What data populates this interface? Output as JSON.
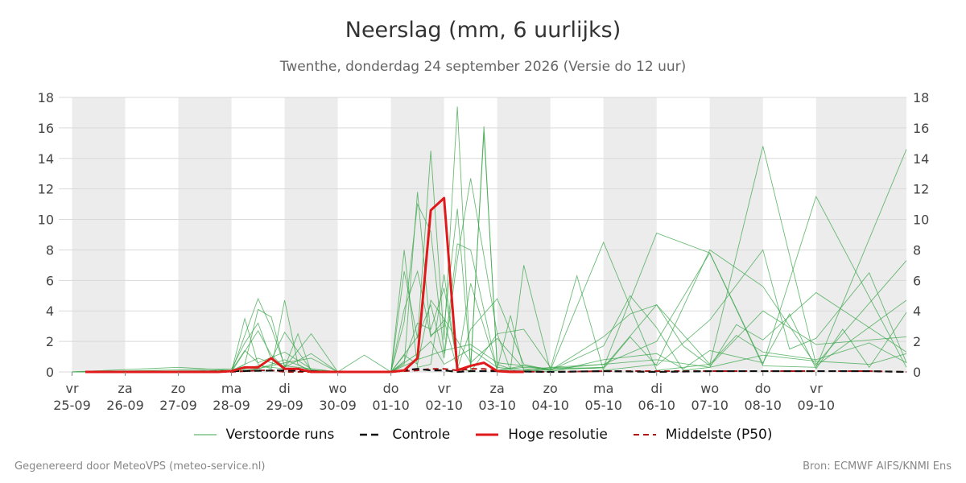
{
  "header": {
    "title": "Neerslag (mm, 6 uurlijks)",
    "subtitle": "Twenthe, donderdag 24 september 2026 (Versie do 12 uur)"
  },
  "footer": {
    "left": "Gegenereerd door MeteoVPS (meteo-service.nl)",
    "right": "Bron: ECMWF AIFS/KNMI Ens"
  },
  "colors": {
    "ensemble": "#3aa64a",
    "control": "#111111",
    "highres": "#e0191b",
    "median": "#b01414",
    "weekend_band": "#ececec",
    "grid": "#d9d9d9"
  },
  "chart_data": {
    "type": "line",
    "x_unit": "days since 24-09 00:00 (6-hourly steps)",
    "xlim": [
      0.75,
      16.7
    ],
    "ylim": [
      0,
      18
    ],
    "yticks": [
      0,
      2,
      4,
      6,
      8,
      10,
      12,
      14,
      16,
      18
    ],
    "grid": true,
    "legend_position": "bottom",
    "x_ticks": [
      {
        "x": 1,
        "day": "vr",
        "date": "25-09"
      },
      {
        "x": 2,
        "day": "za",
        "date": "26-09"
      },
      {
        "x": 3,
        "day": "zo",
        "date": "27-09"
      },
      {
        "x": 4,
        "day": "ma",
        "date": "28-09"
      },
      {
        "x": 5,
        "day": "di",
        "date": "29-09"
      },
      {
        "x": 6,
        "day": "wo",
        "date": "30-09"
      },
      {
        "x": 7,
        "day": "do",
        "date": "01-10"
      },
      {
        "x": 8,
        "day": "vr",
        "date": "02-10"
      },
      {
        "x": 9,
        "day": "za",
        "date": "03-10"
      },
      {
        "x": 10,
        "day": "zo",
        "date": "04-10"
      },
      {
        "x": 11,
        "day": "ma",
        "date": "05-10"
      },
      {
        "x": 12,
        "day": "di",
        "date": "06-10"
      },
      {
        "x": 13,
        "day": "wo",
        "date": "07-10"
      },
      {
        "x": 14,
        "day": "do",
        "date": "08-10"
      },
      {
        "x": 15,
        "day": "vr",
        "date": "09-10"
      }
    ],
    "shaded_bands": [
      [
        1,
        2
      ],
      [
        3,
        4
      ],
      [
        5,
        6
      ],
      [
        7,
        8
      ],
      [
        9,
        10
      ],
      [
        11,
        12
      ],
      [
        13,
        14
      ],
      [
        15,
        16.7
      ]
    ],
    "legend": [
      "Verstoorde runs",
      "Controle",
      "Hoge resolutie",
      "Middelste (P50)"
    ],
    "series": [
      {
        "name": "Hoge resolutie",
        "x": [
          1.25,
          1.5,
          1.75,
          2,
          2.25,
          2.5,
          2.75,
          3,
          3.25,
          3.5,
          3.75,
          4,
          4.25,
          4.5,
          4.75,
          5,
          5.25,
          5.5,
          5.75,
          6,
          6.25,
          6.5,
          6.75,
          7,
          7.25,
          7.5,
          7.75,
          8,
          8.25,
          8.5,
          8.75,
          9,
          9.25,
          9.5
        ],
        "values": [
          0,
          0,
          0,
          0,
          0,
          0,
          0,
          0,
          0,
          0,
          0,
          0.05,
          0.3,
          0.3,
          0.9,
          0.2,
          0.2,
          0,
          0,
          0,
          0,
          0,
          0,
          0,
          0.1,
          0.9,
          10.6,
          11.4,
          0.1,
          0.4,
          0.6,
          0.05,
          0,
          0
        ]
      },
      {
        "name": "Controle",
        "x": [
          1.25,
          2,
          3,
          4,
          5,
          6,
          7,
          7.5,
          7.75,
          8,
          8.25,
          8.5,
          9,
          10,
          11,
          12,
          13,
          14,
          15,
          16,
          16.7
        ],
        "values": [
          0,
          0,
          0,
          0.05,
          0.1,
          0,
          0,
          0.2,
          0.1,
          0.1,
          0,
          0.05,
          0.05,
          0,
          0.05,
          0,
          0.05,
          0.05,
          0.05,
          0.05,
          0
        ]
      },
      {
        "name": "Middelste (P50)",
        "x": [
          1.25,
          2,
          3,
          4,
          4.5,
          4.75,
          5,
          6,
          7,
          7.5,
          7.75,
          8,
          8.25,
          8.5,
          8.75,
          9,
          10,
          11,
          12,
          13,
          14,
          15,
          16,
          16.7
        ],
        "values": [
          0,
          0,
          0,
          0,
          0.1,
          0.1,
          0,
          0,
          0,
          0.1,
          0.2,
          0.2,
          0.1,
          0.2,
          0.2,
          0.05,
          0,
          0.05,
          0.05,
          0.05,
          0.05,
          0.05,
          0.05,
          0
        ]
      }
    ],
    "ensemble_runs": [
      {
        "x": [
          1,
          4,
          4.25,
          4.5,
          4.75,
          5,
          5.25,
          5.5,
          6,
          7,
          7.25,
          7.5,
          7.75,
          8,
          8.25,
          8.5,
          9,
          9.25,
          9.5,
          10,
          11,
          12,
          13,
          14,
          15,
          16.7
        ],
        "values": [
          0,
          0,
          3.5,
          0.5,
          0.2,
          4.7,
          0.5,
          0,
          0,
          0,
          8,
          0.3,
          0.5,
          6.4,
          0.3,
          0,
          2.5,
          0.1,
          0,
          0.2,
          0.3,
          9.1,
          7.8,
          0.5,
          11.5,
          0.3
        ]
      },
      {
        "x": [
          1,
          4,
          4.25,
          4.5,
          4.75,
          5,
          5.25,
          5.5,
          6,
          7,
          7.25,
          7.5,
          7.75,
          8,
          8.25,
          8.5,
          8.75,
          9,
          9.25,
          9.5,
          10,
          11,
          12,
          13,
          14,
          15,
          16.7
        ],
        "values": [
          0,
          0,
          0.5,
          4.1,
          3.6,
          0.3,
          2.5,
          0,
          0,
          0,
          6.6,
          2.2,
          14.5,
          2.1,
          17.4,
          0.1,
          16.1,
          0.2,
          3.7,
          0.1,
          0.3,
          0.5,
          2,
          7.8,
          0.4,
          0.3,
          14.6
        ]
      },
      {
        "x": [
          1,
          4,
          4.5,
          4.75,
          5,
          5.5,
          6,
          7,
          7.25,
          7.5,
          7.75,
          8,
          8.25,
          8.5,
          8.75,
          9,
          9.25,
          9.5,
          10,
          11,
          12,
          13,
          14,
          15,
          16.7
        ],
        "values": [
          0,
          0,
          4.8,
          2.9,
          0.4,
          0.2,
          0,
          0,
          0.5,
          11.8,
          2.4,
          3,
          10.7,
          0.4,
          15.7,
          0.5,
          0.2,
          7,
          0.1,
          8.5,
          0.1,
          0.5,
          14.8,
          0.5,
          7.3
        ]
      },
      {
        "x": [
          1,
          4,
          4.25,
          4.5,
          4.75,
          5,
          5.5,
          6,
          7,
          7.25,
          7.5,
          7.75,
          8,
          8.25,
          8.5,
          9,
          9.5,
          10,
          10.5,
          11,
          12,
          13,
          14,
          15,
          16.7
        ],
        "values": [
          0,
          0.2,
          1.9,
          3.2,
          0.8,
          2.6,
          0.1,
          0,
          0,
          3.3,
          11,
          9.2,
          1.2,
          8.4,
          8,
          0.1,
          0.3,
          0.2,
          6.3,
          0.1,
          0.5,
          8,
          5.6,
          0.4,
          4.7
        ]
      },
      {
        "x": [
          1,
          4,
          4.5,
          4.75,
          5,
          5.5,
          6,
          6.5,
          7,
          7.5,
          7.75,
          8,
          8.25,
          8.5,
          9,
          9.5,
          10,
          11,
          11.5,
          12,
          13,
          14,
          14.5,
          15,
          16,
          16.7
        ],
        "values": [
          0,
          0,
          2.7,
          1.1,
          0.3,
          2.5,
          0,
          1.1,
          0,
          2.3,
          4.4,
          0.9,
          7.4,
          12.7,
          2.5,
          2.8,
          0.3,
          0.2,
          2.3,
          0.4,
          3.4,
          8,
          1.5,
          2.2,
          6.5,
          0.6
        ]
      },
      {
        "x": [
          1,
          3,
          4,
          4.25,
          4.5,
          5,
          5.5,
          6,
          7,
          7.25,
          7.5,
          7.75,
          8,
          8.25,
          8.5,
          9,
          9.5,
          10,
          11,
          11.5,
          12,
          12.5,
          13,
          14,
          15,
          16.7
        ],
        "values": [
          0,
          0.3,
          0.1,
          1.4,
          0.6,
          1.3,
          0.2,
          0,
          0,
          4.1,
          6.6,
          2.3,
          3.4,
          0.2,
          2.8,
          4.8,
          0.5,
          0.1,
          2.3,
          3.8,
          4.4,
          1.7,
          0.4,
          4,
          1.8,
          2.3
        ]
      },
      {
        "x": [
          1,
          4,
          4.5,
          5,
          5.5,
          6,
          7,
          7.25,
          7.5,
          7.75,
          8,
          8.25,
          8.5,
          9,
          9.5,
          10,
          11,
          11.5,
          12,
          12.5,
          13,
          13.5,
          14,
          15,
          16.7
        ],
        "values": [
          0,
          0,
          0.2,
          0.8,
          0.1,
          0,
          0,
          0.7,
          3.2,
          2.8,
          5.5,
          0.5,
          5.8,
          0.1,
          0.4,
          0.1,
          1.7,
          5,
          2.9,
          0.1,
          0.3,
          3.1,
          2.1,
          5.2,
          1.3
        ]
      },
      {
        "x": [
          1,
          4,
          4.5,
          5,
          5.5,
          6,
          7,
          7.25,
          7.5,
          7.75,
          8,
          8.5,
          9,
          9.5,
          10,
          11,
          12,
          13,
          13.5,
          14,
          15,
          16,
          16.7
        ],
        "values": [
          0,
          0.1,
          0.9,
          0.3,
          1.2,
          0,
          0,
          1.1,
          0.5,
          4.7,
          3.5,
          0.6,
          2.2,
          0.2,
          0.1,
          0.3,
          4.4,
          0.5,
          2.4,
          1.3,
          0.8,
          1.9,
          0.6
        ]
      },
      {
        "x": [
          1,
          4,
          4.5,
          5,
          5.5,
          6,
          7,
          7.5,
          7.75,
          8,
          8.5,
          9,
          9.5,
          10,
          11,
          12,
          12.5,
          13,
          14,
          14.5,
          15,
          15.5,
          16,
          16.7
        ],
        "values": [
          0,
          0,
          0.2,
          0.6,
          0.9,
          0,
          0,
          1.2,
          2,
          0.5,
          1.5,
          0.3,
          0.1,
          0,
          0.8,
          1.2,
          0.2,
          1.4,
          0.6,
          3.8,
          0.2,
          2.8,
          0.3,
          3.9
        ]
      },
      {
        "x": [
          1,
          4,
          4.5,
          5,
          6,
          7,
          7.5,
          8,
          8.5,
          9,
          10,
          11,
          12,
          13,
          14,
          15,
          16,
          16.7
        ],
        "values": [
          0,
          0,
          0.4,
          0.2,
          0,
          0,
          0.8,
          1.4,
          1.8,
          0.6,
          0.2,
          0.5,
          0.8,
          0.3,
          1.1,
          0.7,
          0.5,
          1.2
        ]
      }
    ]
  }
}
